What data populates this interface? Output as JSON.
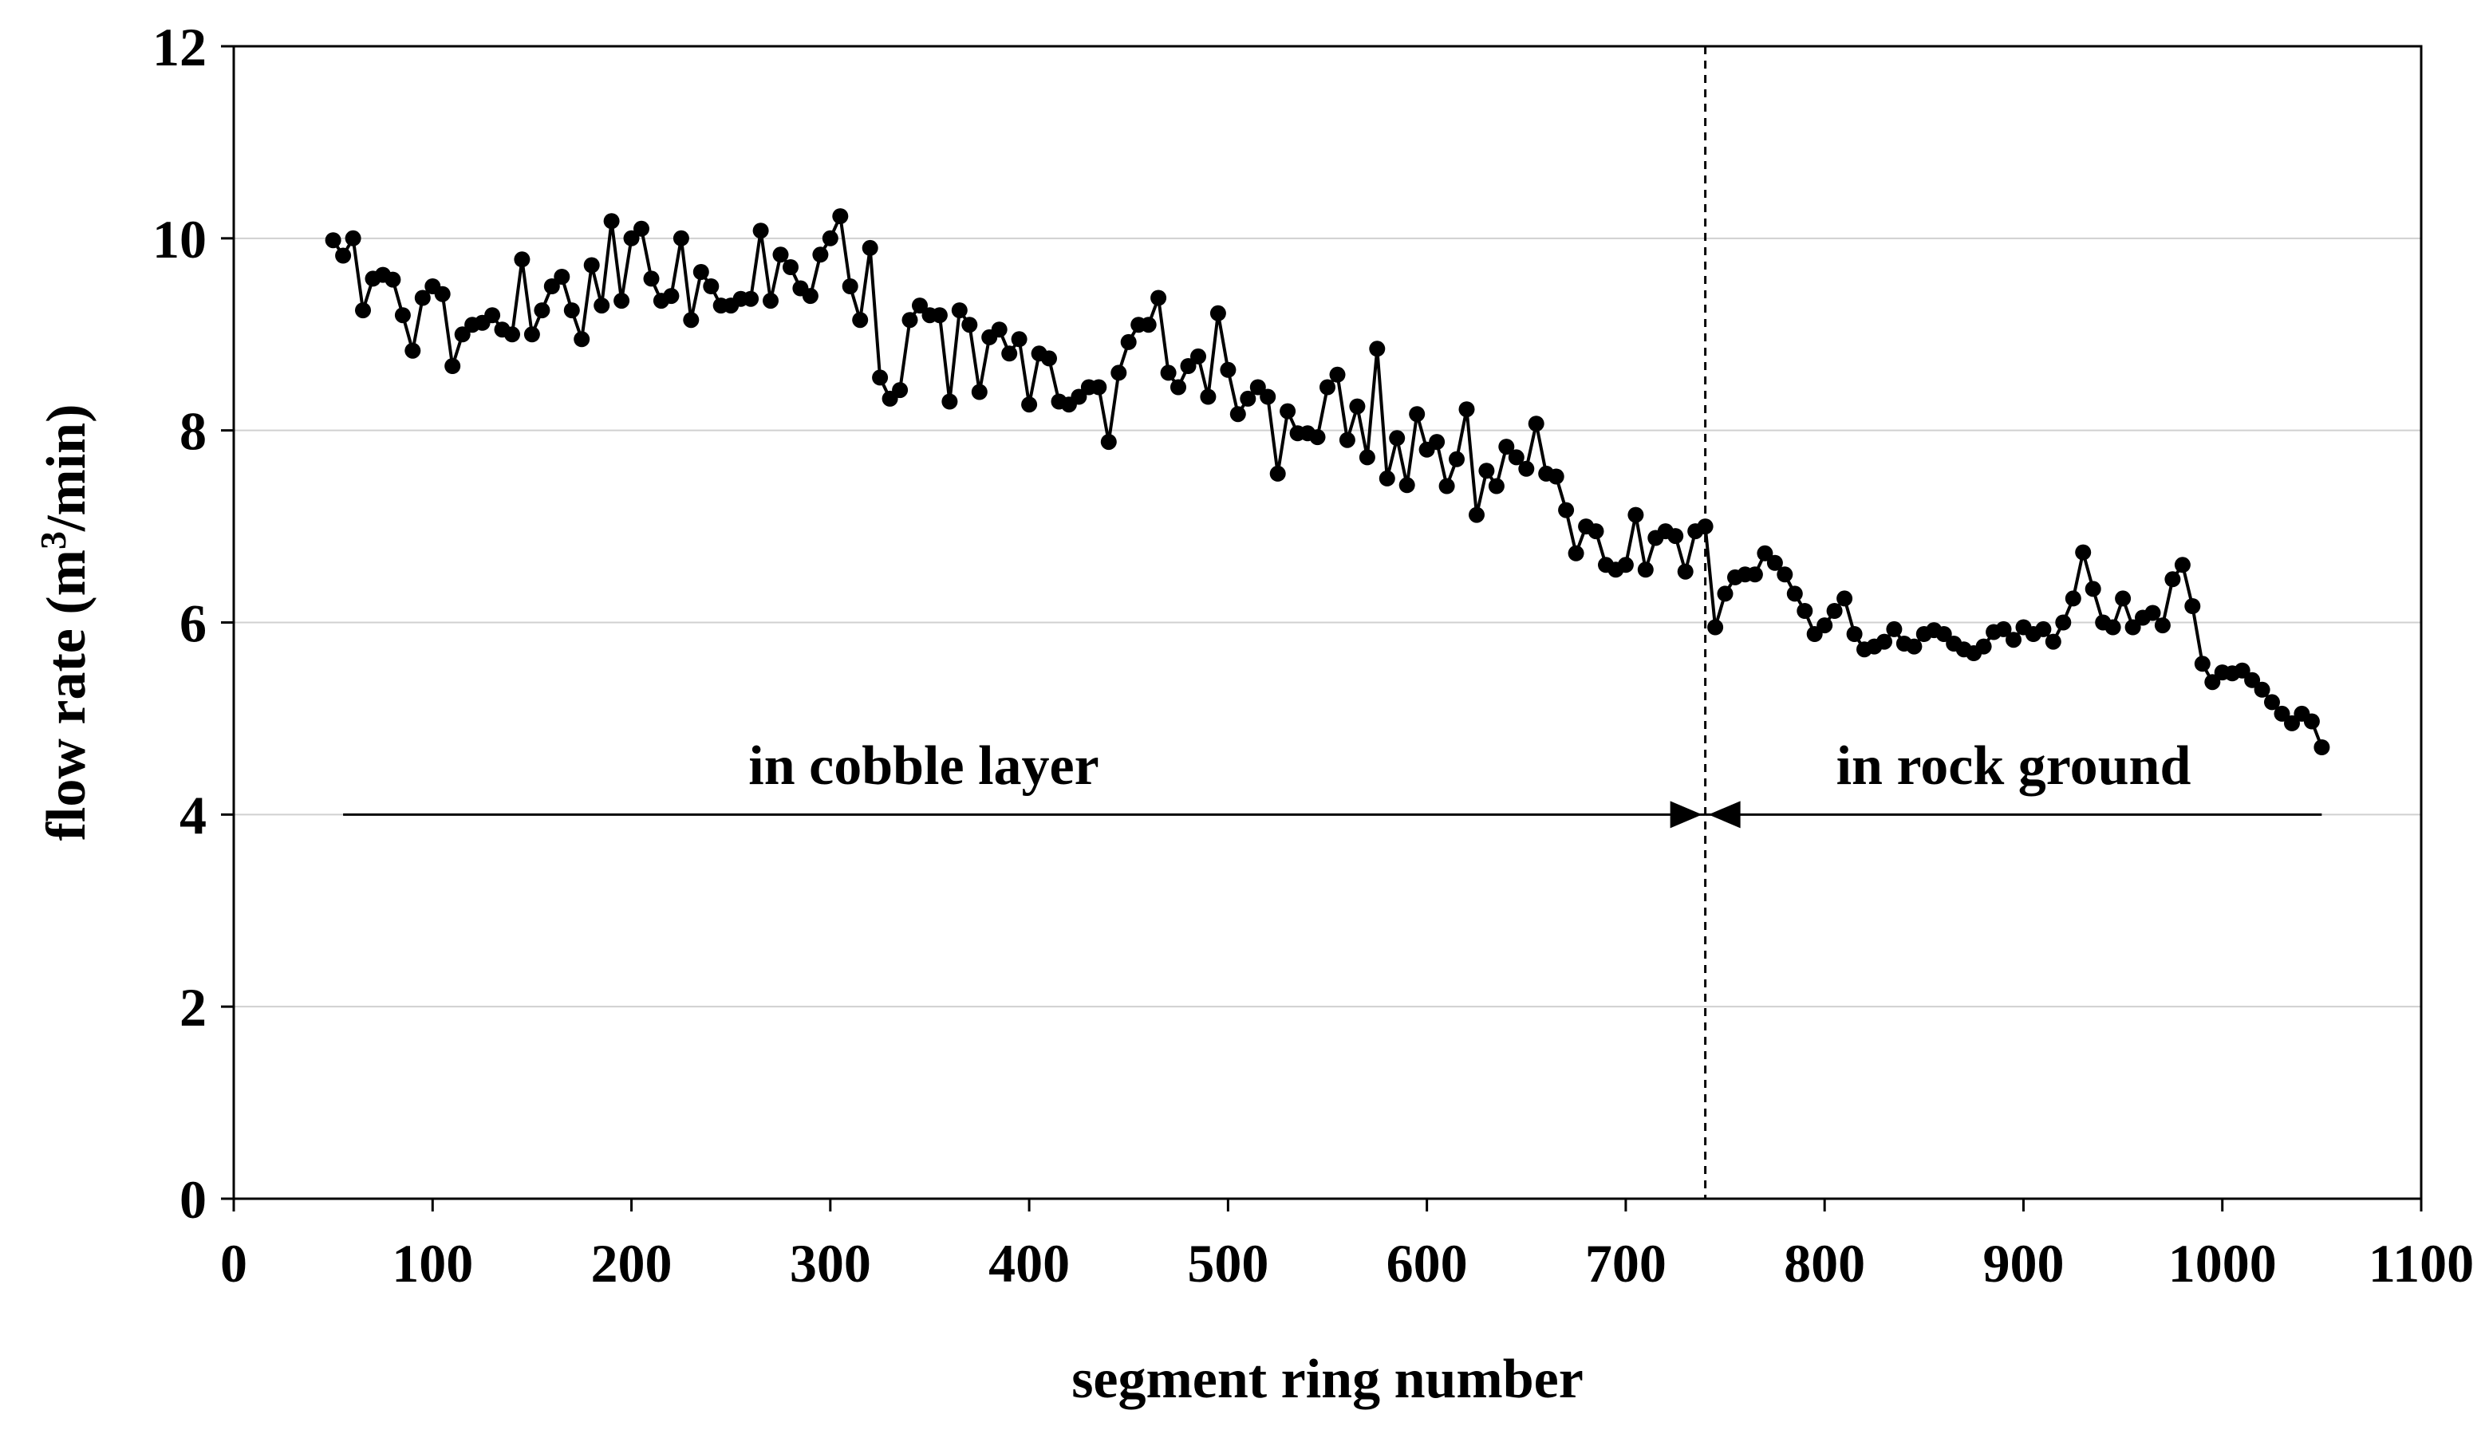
{
  "colors": {
    "background": "#ffffff",
    "series": "#000000",
    "grid": "#d0d0d0",
    "axis": "#000000"
  },
  "chart_data": {
    "type": "line",
    "title": "",
    "xlabel": "segment ring number",
    "ylabel_main": "flow rate (m",
    "ylabel_sup": "3",
    "ylabel_end": "/min)",
    "ylabel": "flow rate (m3/min)",
    "xlim": [
      0,
      1100
    ],
    "ylim": [
      0,
      12
    ],
    "xticks": [
      0,
      100,
      200,
      300,
      400,
      500,
      600,
      700,
      800,
      900,
      1000,
      1100
    ],
    "yticks": [
      0,
      2,
      4,
      6,
      8,
      10,
      12
    ],
    "xtick_labels": [
      "0",
      "100",
      "200",
      "300",
      "400",
      "500",
      "600",
      "700",
      "800",
      "900",
      "1000",
      "1100"
    ],
    "ytick_labels": [
      "0",
      "2",
      "4",
      "6",
      "8",
      "10",
      "12"
    ],
    "grid": {
      "y": true,
      "x": false
    },
    "series": [
      {
        "name": "flow rate",
        "marker": "circle",
        "x": [
          50,
          55,
          60,
          65,
          70,
          75,
          80,
          85,
          90,
          95,
          100,
          105,
          110,
          115,
          120,
          125,
          130,
          135,
          140,
          145,
          150,
          155,
          160,
          165,
          170,
          175,
          180,
          185,
          190,
          195,
          200,
          205,
          210,
          215,
          220,
          225,
          230,
          235,
          240,
          245,
          250,
          255,
          260,
          265,
          270,
          275,
          280,
          285,
          290,
          295,
          300,
          305,
          310,
          315,
          320,
          325,
          330,
          335,
          340,
          345,
          350,
          355,
          360,
          365,
          370,
          375,
          380,
          385,
          390,
          395,
          400,
          405,
          410,
          415,
          420,
          425,
          430,
          435,
          440,
          445,
          450,
          455,
          460,
          465,
          470,
          475,
          480,
          485,
          490,
          495,
          500,
          505,
          510,
          515,
          520,
          525,
          530,
          535,
          540,
          545,
          550,
          555,
          560,
          565,
          570,
          575,
          580,
          585,
          590,
          595,
          600,
          605,
          610,
          615,
          620,
          625,
          630,
          635,
          640,
          645,
          650,
          655,
          660,
          665,
          670,
          675,
          680,
          685,
          690,
          695,
          700,
          705,
          710,
          715,
          720,
          725,
          730,
          735,
          740,
          745,
          750,
          755,
          760,
          765,
          770,
          775,
          780,
          785,
          790,
          795,
          800,
          805,
          810,
          815,
          820,
          825,
          830,
          835,
          840,
          845,
          850,
          855,
          860,
          865,
          870,
          875,
          880,
          885,
          890,
          895,
          900,
          905,
          910,
          915,
          920,
          925,
          930,
          935,
          940,
          945,
          950,
          955,
          960,
          965,
          970,
          975,
          980,
          985,
          990,
          995,
          1000,
          1005,
          1010,
          1015,
          1020,
          1025,
          1030,
          1035,
          1040,
          1045,
          1050
        ],
        "y": [
          9.98,
          9.82,
          10.0,
          9.25,
          9.58,
          9.62,
          9.57,
          9.2,
          8.83,
          9.38,
          9.5,
          9.42,
          8.67,
          9.0,
          9.1,
          9.12,
          9.2,
          9.05,
          9.0,
          9.78,
          9.0,
          9.25,
          9.5,
          9.6,
          9.25,
          8.95,
          9.72,
          9.3,
          10.18,
          9.35,
          10.0,
          10.1,
          9.58,
          9.35,
          9.4,
          10.0,
          9.15,
          9.65,
          9.5,
          9.3,
          9.3,
          9.37,
          9.37,
          10.08,
          9.35,
          9.83,
          9.7,
          9.48,
          9.4,
          9.83,
          10.0,
          10.23,
          9.5,
          9.15,
          9.9,
          8.55,
          8.33,
          8.42,
          9.15,
          9.3,
          9.2,
          9.2,
          8.3,
          9.25,
          9.1,
          8.4,
          8.97,
          9.05,
          8.8,
          8.95,
          8.27,
          8.8,
          8.75,
          8.3,
          8.27,
          8.35,
          8.45,
          8.45,
          7.88,
          8.6,
          8.92,
          9.1,
          9.1,
          9.38,
          8.6,
          8.45,
          8.67,
          8.77,
          8.35,
          9.22,
          8.63,
          8.17,
          8.33,
          8.45,
          8.35,
          7.55,
          8.2,
          7.97,
          7.97,
          7.93,
          8.45,
          8.58,
          7.9,
          8.25,
          7.72,
          8.85,
          7.5,
          7.92,
          7.43,
          8.17,
          7.8,
          7.88,
          7.42,
          7.7,
          8.22,
          7.12,
          7.58,
          7.42,
          7.83,
          7.72,
          7.6,
          8.07,
          7.55,
          7.52,
          7.17,
          6.72,
          7.0,
          6.95,
          6.6,
          6.55,
          6.6,
          7.12,
          6.55,
          6.88,
          6.95,
          6.9,
          6.53,
          6.95,
          7.0,
          5.95,
          6.3,
          6.47,
          6.5,
          6.5,
          6.72,
          6.62,
          6.5,
          6.3,
          6.12,
          5.88,
          5.97,
          6.12,
          6.25,
          5.88,
          5.72,
          5.75,
          5.8,
          5.93,
          5.78,
          5.75,
          5.88,
          5.92,
          5.88,
          5.78,
          5.72,
          5.68,
          5.75,
          5.9,
          5.93,
          5.82,
          5.95,
          5.88,
          5.93,
          5.8,
          6.0,
          6.25,
          6.73,
          6.35,
          6.0,
          5.95,
          6.25,
          5.95,
          6.05,
          6.1,
          5.97,
          6.45,
          6.6,
          6.17,
          5.57,
          5.38,
          5.48,
          5.47,
          5.5,
          5.4,
          5.3,
          5.17,
          5.05,
          4.95,
          5.05,
          4.97,
          4.7
        ]
      }
    ],
    "boundary_x": 740,
    "annotations": [
      {
        "id": "cobble",
        "text": "in cobble layer",
        "x_from": 55,
        "x_to": 740,
        "y": 4.0,
        "label_x": 347,
        "label_y": 4.5
      },
      {
        "id": "rock",
        "text": "in rock ground",
        "x_from": 740,
        "x_to": 1050,
        "y": 4.0,
        "label_x": 895,
        "label_y": 4.5
      }
    ]
  }
}
